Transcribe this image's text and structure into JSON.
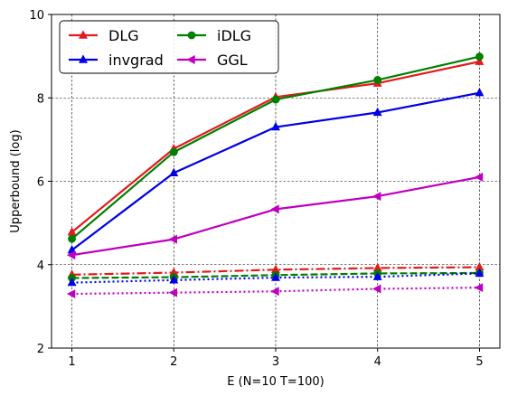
{
  "chart_data": {
    "type": "line",
    "title": "",
    "xlabel": "E (N=10 T=100)",
    "ylabel": "Upperbound (log)",
    "xlim": [
      0.8,
      5.2
    ],
    "ylim": [
      2,
      10
    ],
    "xticks": [
      1,
      2,
      3,
      4,
      5
    ],
    "yticks": [
      2,
      4,
      6,
      8,
      10
    ],
    "grid": true,
    "legend_position": "top-left",
    "legend_columns": 2,
    "x": [
      1,
      2,
      3,
      4,
      5
    ],
    "series": [
      {
        "name": "DLG",
        "color": "#e41a1c",
        "marker": "triangle-up",
        "linestyle": "solid",
        "values": [
          4.78,
          6.78,
          8.02,
          8.35,
          8.87
        ]
      },
      {
        "name": "iDLG",
        "color": "#008000",
        "marker": "circle",
        "linestyle": "solid",
        "values": [
          4.62,
          6.7,
          7.96,
          8.43,
          8.99
        ]
      },
      {
        "name": "invgrad",
        "color": "#0000e6",
        "marker": "triangle-up",
        "linestyle": "solid",
        "values": [
          4.35,
          6.2,
          7.3,
          7.65,
          8.12
        ]
      },
      {
        "name": "GGL",
        "color": "#c000c0",
        "marker": "triangle-left",
        "linestyle": "solid",
        "values": [
          4.23,
          4.61,
          5.33,
          5.64,
          6.1
        ]
      },
      {
        "name": "",
        "color": "#e41a1c",
        "marker": "triangle-up",
        "linestyle": "dashdot",
        "values": [
          3.76,
          3.81,
          3.88,
          3.92,
          3.94
        ]
      },
      {
        "name": "",
        "color": "#008000",
        "marker": "circle",
        "linestyle": "dashed",
        "values": [
          3.68,
          3.7,
          3.75,
          3.79,
          3.8
        ]
      },
      {
        "name": "",
        "color": "#0000e6",
        "marker": "triangle-up",
        "linestyle": "dotted",
        "values": [
          3.57,
          3.63,
          3.69,
          3.71,
          3.79
        ]
      },
      {
        "name": "",
        "color": "#c000c0",
        "marker": "triangle-left",
        "linestyle": "dotted",
        "values": [
          3.3,
          3.33,
          3.36,
          3.42,
          3.45
        ]
      }
    ]
  }
}
